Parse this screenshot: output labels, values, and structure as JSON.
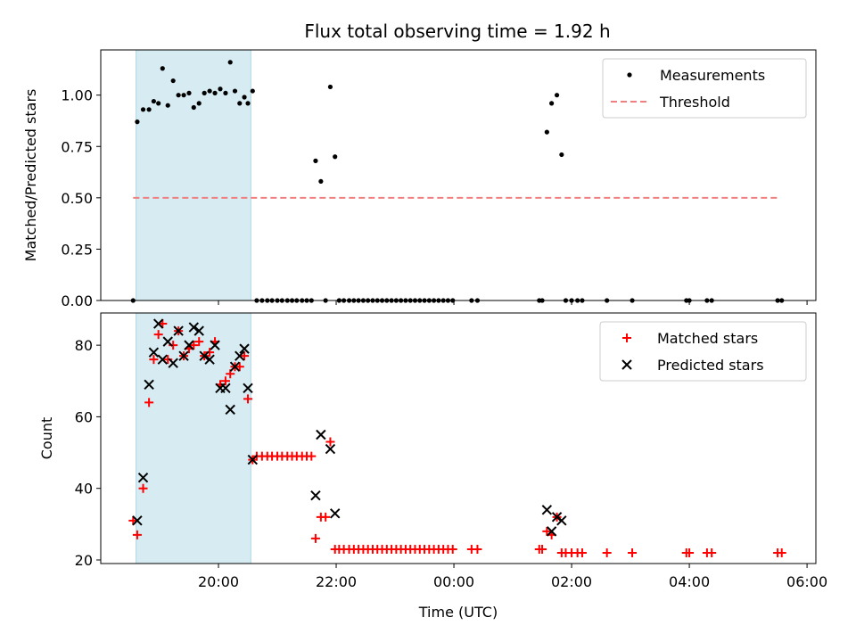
{
  "title": "Flux total observing time = 1.92 h",
  "chart_data": [
    {
      "type": "scatter",
      "ylabel": "Matched/Predicted stars",
      "xlim": [
        18.0,
        30.15
      ],
      "ylim": [
        0,
        1.22
      ],
      "yticks": [
        0.0,
        0.25,
        0.5,
        0.75,
        1.0
      ],
      "ytick_labels": [
        "0.00",
        "0.25",
        "0.50",
        "0.75",
        "1.00"
      ],
      "xticks": [
        20,
        22,
        24,
        26,
        28,
        30
      ],
      "highlight_span": [
        18.6,
        20.55
      ],
      "legend": {
        "position": "top-right",
        "entries": [
          "Measurements",
          "Threshold"
        ]
      },
      "threshold": {
        "name": "Threshold",
        "x": [
          18.55,
          29.55
        ],
        "y": 0.5,
        "color": "#f08080"
      },
      "series": [
        {
          "name": "Measurements",
          "marker": "dot",
          "color": "#000000",
          "points": [
            [
              18.55,
              0.0
            ],
            [
              18.62,
              0.87
            ],
            [
              18.72,
              0.93
            ],
            [
              18.82,
              0.93
            ],
            [
              18.9,
              0.97
            ],
            [
              18.98,
              0.96
            ],
            [
              19.05,
              1.13
            ],
            [
              19.14,
              0.95
            ],
            [
              19.23,
              1.07
            ],
            [
              19.32,
              1.0
            ],
            [
              19.41,
              1.0
            ],
            [
              19.5,
              1.01
            ],
            [
              19.58,
              0.94
            ],
            [
              19.67,
              0.96
            ],
            [
              19.76,
              1.01
            ],
            [
              19.85,
              1.02
            ],
            [
              19.94,
              1.01
            ],
            [
              20.03,
              1.03
            ],
            [
              20.12,
              1.01
            ],
            [
              20.2,
              1.16
            ],
            [
              20.28,
              1.02
            ],
            [
              20.36,
              0.96
            ],
            [
              20.44,
              0.99
            ],
            [
              20.5,
              0.96
            ],
            [
              20.58,
              1.02
            ],
            [
              20.65,
              0.0
            ],
            [
              20.74,
              0.0
            ],
            [
              20.83,
              0.0
            ],
            [
              20.91,
              0.0
            ],
            [
              21.0,
              0.0
            ],
            [
              21.08,
              0.0
            ],
            [
              21.17,
              0.0
            ],
            [
              21.25,
              0.0
            ],
            [
              21.33,
              0.0
            ],
            [
              21.42,
              0.0
            ],
            [
              21.5,
              0.0
            ],
            [
              21.58,
              0.0
            ],
            [
              21.65,
              0.68
            ],
            [
              21.74,
              0.58
            ],
            [
              21.82,
              0.0
            ],
            [
              21.9,
              1.04
            ],
            [
              21.98,
              0.7
            ],
            [
              22.05,
              0.0
            ],
            [
              22.13,
              0.0
            ],
            [
              22.22,
              0.0
            ],
            [
              22.3,
              0.0
            ],
            [
              22.38,
              0.0
            ],
            [
              22.46,
              0.0
            ],
            [
              22.54,
              0.0
            ],
            [
              22.62,
              0.0
            ],
            [
              22.7,
              0.0
            ],
            [
              22.78,
              0.0
            ],
            [
              22.86,
              0.0
            ],
            [
              22.94,
              0.0
            ],
            [
              23.02,
              0.0
            ],
            [
              23.1,
              0.0
            ],
            [
              23.18,
              0.0
            ],
            [
              23.26,
              0.0
            ],
            [
              23.34,
              0.0
            ],
            [
              23.42,
              0.0
            ],
            [
              23.5,
              0.0
            ],
            [
              23.58,
              0.0
            ],
            [
              23.66,
              0.0
            ],
            [
              23.74,
              0.0
            ],
            [
              23.82,
              0.0
            ],
            [
              23.9,
              0.0
            ],
            [
              23.98,
              0.0
            ],
            [
              24.3,
              0.0
            ],
            [
              24.4,
              0.0
            ],
            [
              25.45,
              0.0
            ],
            [
              25.5,
              0.0
            ],
            [
              25.58,
              0.82
            ],
            [
              25.66,
              0.96
            ],
            [
              25.75,
              1.0
            ],
            [
              25.83,
              0.71
            ],
            [
              25.9,
              0.0
            ],
            [
              26.0,
              0.0
            ],
            [
              26.1,
              0.0
            ],
            [
              26.18,
              0.0
            ],
            [
              26.6,
              0.0
            ],
            [
              27.03,
              0.0
            ],
            [
              27.95,
              0.0
            ],
            [
              28.0,
              0.0
            ],
            [
              28.3,
              0.0
            ],
            [
              28.38,
              0.0
            ],
            [
              29.5,
              0.0
            ],
            [
              29.57,
              0.0
            ]
          ]
        }
      ]
    },
    {
      "type": "scatter",
      "xlabel": "Time (UTC)",
      "ylabel": "Count",
      "xlim": [
        18.0,
        30.15
      ],
      "ylim": [
        19,
        89
      ],
      "yticks": [
        20,
        40,
        60,
        80
      ],
      "ytick_labels": [
        "20",
        "40",
        "60",
        "80"
      ],
      "xticks": [
        20,
        22,
        24,
        26,
        28,
        30
      ],
      "xtick_labels": [
        "20:00",
        "22:00",
        "00:00",
        "02:00",
        "04:00",
        "06:00"
      ],
      "highlight_span": [
        18.6,
        20.55
      ],
      "legend": {
        "position": "top-right",
        "entries": [
          "Matched stars",
          "Predicted stars"
        ]
      },
      "series": [
        {
          "name": "Matched stars",
          "marker": "plus",
          "color": "#ff0000",
          "points": [
            [
              18.55,
              31
            ],
            [
              18.62,
              27
            ],
            [
              18.72,
              40
            ],
            [
              18.82,
              64
            ],
            [
              18.9,
              76
            ],
            [
              18.98,
              83
            ],
            [
              19.05,
              86
            ],
            [
              19.14,
              76
            ],
            [
              19.23,
              80
            ],
            [
              19.32,
              84
            ],
            [
              19.41,
              77
            ],
            [
              19.5,
              79
            ],
            [
              19.58,
              80
            ],
            [
              19.67,
              81
            ],
            [
              19.76,
              77
            ],
            [
              19.85,
              78
            ],
            [
              19.94,
              81
            ],
            [
              20.03,
              69
            ],
            [
              20.12,
              70
            ],
            [
              20.2,
              72
            ],
            [
              20.28,
              74
            ],
            [
              20.36,
              74
            ],
            [
              20.44,
              77
            ],
            [
              20.5,
              65
            ],
            [
              20.58,
              48
            ],
            [
              20.65,
              49
            ],
            [
              20.74,
              49
            ],
            [
              20.83,
              49
            ],
            [
              20.91,
              49
            ],
            [
              21.0,
              49
            ],
            [
              21.08,
              49
            ],
            [
              21.17,
              49
            ],
            [
              21.25,
              49
            ],
            [
              21.33,
              49
            ],
            [
              21.42,
              49
            ],
            [
              21.5,
              49
            ],
            [
              21.58,
              49
            ],
            [
              21.65,
              26
            ],
            [
              21.74,
              32
            ],
            [
              21.82,
              32
            ],
            [
              21.9,
              53
            ],
            [
              21.98,
              23
            ],
            [
              22.05,
              23
            ],
            [
              22.13,
              23
            ],
            [
              22.22,
              23
            ],
            [
              22.3,
              23
            ],
            [
              22.38,
              23
            ],
            [
              22.46,
              23
            ],
            [
              22.54,
              23
            ],
            [
              22.62,
              23
            ],
            [
              22.7,
              23
            ],
            [
              22.78,
              23
            ],
            [
              22.86,
              23
            ],
            [
              22.94,
              23
            ],
            [
              23.02,
              23
            ],
            [
              23.1,
              23
            ],
            [
              23.18,
              23
            ],
            [
              23.26,
              23
            ],
            [
              23.34,
              23
            ],
            [
              23.42,
              23
            ],
            [
              23.5,
              23
            ],
            [
              23.58,
              23
            ],
            [
              23.66,
              23
            ],
            [
              23.74,
              23
            ],
            [
              23.82,
              23
            ],
            [
              23.9,
              23
            ],
            [
              23.98,
              23
            ],
            [
              24.3,
              23
            ],
            [
              24.4,
              23
            ],
            [
              25.45,
              23
            ],
            [
              25.5,
              23
            ],
            [
              25.58,
              28
            ],
            [
              25.66,
              27
            ],
            [
              25.75,
              32
            ],
            [
              25.83,
              22
            ],
            [
              25.9,
              22
            ],
            [
              26.0,
              22
            ],
            [
              26.1,
              22
            ],
            [
              26.18,
              22
            ],
            [
              26.6,
              22
            ],
            [
              27.03,
              22
            ],
            [
              27.95,
              22
            ],
            [
              28.0,
              22
            ],
            [
              28.3,
              22
            ],
            [
              28.38,
              22
            ],
            [
              29.5,
              22
            ],
            [
              29.57,
              22
            ]
          ]
        },
        {
          "name": "Predicted stars",
          "marker": "x",
          "color": "#000000",
          "points": [
            [
              18.62,
              31
            ],
            [
              18.72,
              43
            ],
            [
              18.82,
              69
            ],
            [
              18.9,
              78
            ],
            [
              18.98,
              86
            ],
            [
              19.05,
              76
            ],
            [
              19.14,
              81
            ],
            [
              19.23,
              75
            ],
            [
              19.32,
              84
            ],
            [
              19.41,
              77
            ],
            [
              19.5,
              80
            ],
            [
              19.58,
              85
            ],
            [
              19.67,
              84
            ],
            [
              19.76,
              77
            ],
            [
              19.85,
              76
            ],
            [
              19.94,
              80
            ],
            [
              20.03,
              68
            ],
            [
              20.12,
              68
            ],
            [
              20.2,
              62
            ],
            [
              20.28,
              74
            ],
            [
              20.36,
              77
            ],
            [
              20.44,
              79
            ],
            [
              20.5,
              68
            ],
            [
              20.58,
              48
            ],
            [
              21.65,
              38
            ],
            [
              21.74,
              55
            ],
            [
              21.9,
              51
            ],
            [
              21.98,
              33
            ],
            [
              25.58,
              34
            ],
            [
              25.66,
              28
            ],
            [
              25.75,
              32
            ],
            [
              25.83,
              31
            ]
          ]
        }
      ]
    }
  ]
}
